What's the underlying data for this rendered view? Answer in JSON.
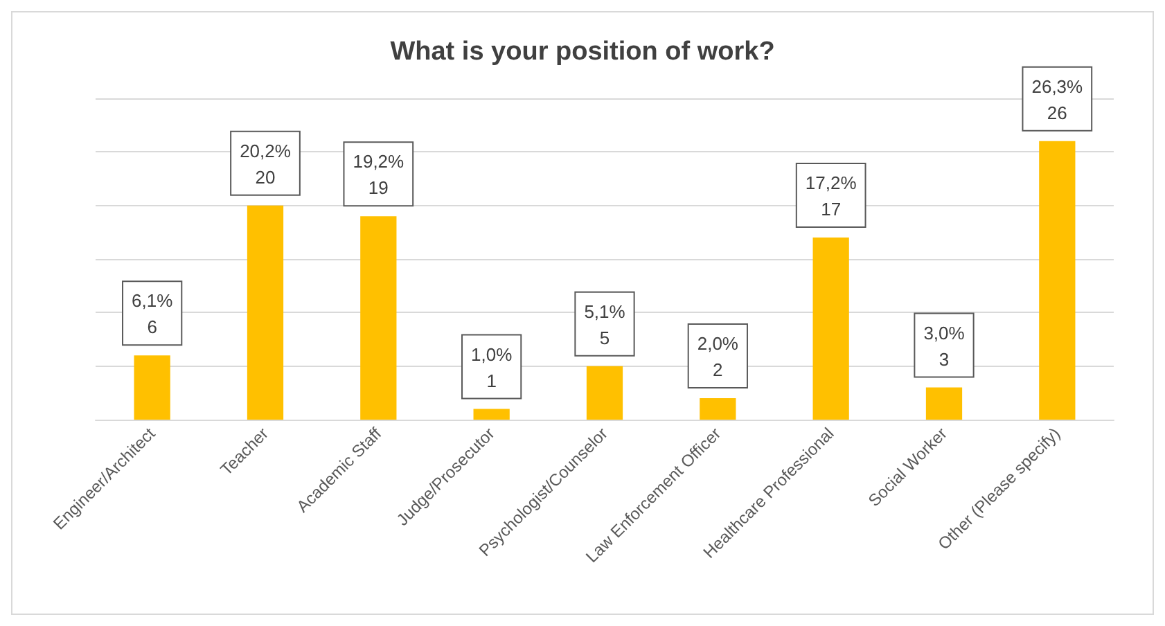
{
  "chart_data": {
    "type": "bar",
    "title": "What is your position of work?",
    "categories": [
      "Engineer/Architect",
      "Teacher",
      "Academic Staff",
      "Judge/Prosecutor",
      "Psychologist/Counselor",
      "Law Enforcement Officer",
      "Healthcare Professional",
      "Social Worker",
      "Other (Please specify)"
    ],
    "values": [
      6,
      20,
      19,
      1,
      5,
      2,
      17,
      3,
      26
    ],
    "value_labels": [
      "6,1%\n6",
      "20,2%\n20",
      "19,2%\n19",
      "1,0%\n1",
      "5,1%\n5",
      "2,0%\n2",
      "17,2%\n17",
      "3,0%\n3",
      "26,3%\n26"
    ],
    "color": "#ffc000",
    "ylim": [
      0,
      30
    ],
    "yticks": [
      {
        "value": 0,
        "label": null
      },
      {
        "value": 5,
        "label": null
      },
      {
        "value": 10,
        "label": null
      },
      {
        "value": 15,
        "label": null
      },
      {
        "value": 20,
        "label": null
      },
      {
        "value": 25,
        "label": null
      },
      {
        "value": 30,
        "label": null
      }
    ],
    "grid": "y",
    "tick_labels": "x"
  }
}
